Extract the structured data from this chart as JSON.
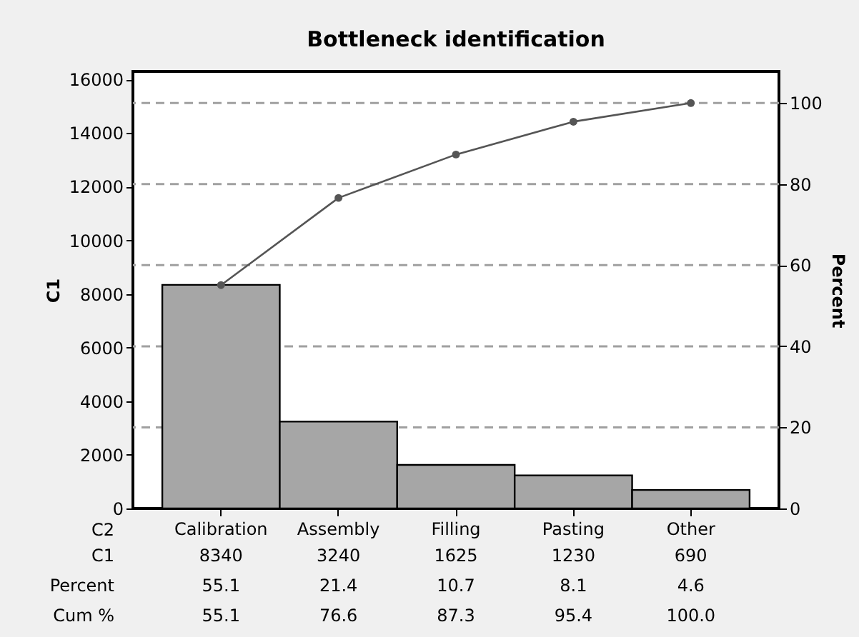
{
  "chart_data": {
    "type": "bar",
    "title": "Bottleneck identification",
    "xlabel": "C2",
    "ylabel": "C1",
    "y2label": "Percent",
    "categories": [
      "Calibration",
      "Assembly",
      "Filling",
      "Pasting",
      "Other"
    ],
    "series": [
      {
        "color": "#a6a6a6",
        "values": [
          8340,
          3240,
          1625,
          1230,
          690
        ],
        "value_labels": [
          "8340",
          "3240",
          "1625",
          "1230",
          "690"
        ]
      },
      {
        "type": "line",
        "axis": "y2",
        "color": "#555555",
        "values": [
          55.1,
          76.6,
          87.3,
          95.4,
          100.0
        ],
        "value_labels": [
          "55.1",
          "76.6",
          "87.3",
          "95.4",
          "100.0"
        ]
      }
    ],
    "annotations": [
      "C1",
      "Cum %",
      "Percent",
      "55.1",
      "21.4",
      "10.7",
      "8.1",
      "4.6"
    ],
    "ylim": [
      0,
      16300
    ],
    "yticks": [
      0,
      2000,
      4000,
      6000,
      8000,
      10000,
      12000,
      14000,
      16000
    ],
    "y2lim": [
      0,
      107.8
    ],
    "y2ticks": [
      0,
      20,
      40,
      60,
      80,
      100
    ],
    "ref_lines": [
      {
        "axis": "y2",
        "value": 20,
        "color": "#a0a0a0",
        "line_style": "dashed"
      },
      {
        "axis": "y2",
        "value": 40,
        "color": "#a0a0a0",
        "line_style": "dashed"
      },
      {
        "axis": "y2",
        "value": 60,
        "color": "#a0a0a0",
        "line_style": "dashed"
      },
      {
        "axis": "y2",
        "value": 80,
        "color": "#a0a0a0",
        "line_style": "dashed"
      },
      {
        "axis": "y2",
        "value": 100,
        "color": "#a0a0a0",
        "line_style": "dashed"
      }
    ],
    "marker": "circle"
  }
}
